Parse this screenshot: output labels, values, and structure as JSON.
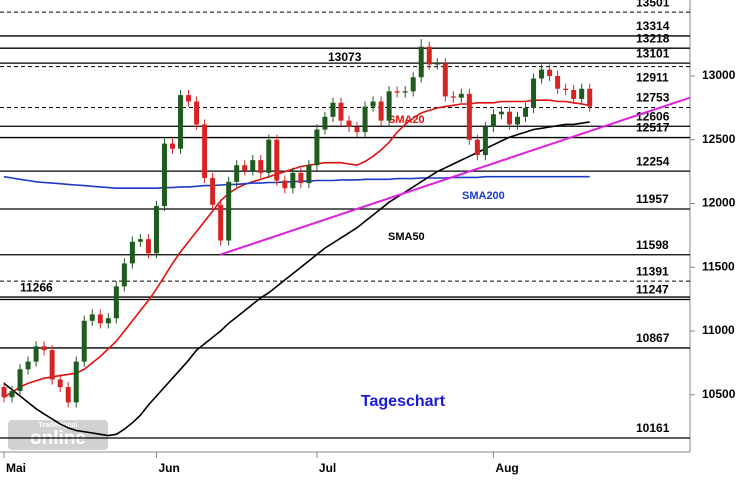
{
  "chart_data": {
    "type": "candlestick",
    "title": "Tageschart",
    "title_color": "#1a1adc",
    "watermark": {
      "brand": "Tradesignal",
      "name": "online"
    },
    "categories": [
      "Mai",
      null,
      null,
      null,
      null,
      null,
      null,
      null,
      null,
      null,
      null,
      null,
      null,
      null,
      null,
      null,
      null,
      null,
      null,
      "Jun",
      null,
      null,
      null,
      null,
      null,
      null,
      null,
      null,
      null,
      null,
      null,
      null,
      null,
      null,
      null,
      null,
      null,
      null,
      null,
      "Jul",
      null,
      null,
      null,
      null,
      null,
      null,
      null,
      null,
      null,
      null,
      null,
      null,
      null,
      null,
      null,
      null,
      null,
      null,
      null,
      null,
      null,
      "Aug",
      null,
      null,
      null,
      null,
      null,
      null,
      null,
      null,
      null,
      null,
      null,
      null
    ],
    "open": [
      10560,
      10480,
      10530,
      10700,
      10760,
      10880,
      10850,
      10620,
      10560,
      10440,
      10760,
      11080,
      11130,
      11060,
      11100,
      11350,
      11530,
      11700,
      11720,
      11610,
      11980,
      12470,
      12430,
      12850,
      12800,
      12620,
      12200,
      11990,
      11710,
      12170,
      12300,
      12260,
      12340,
      12240,
      12500,
      12180,
      12120,
      12240,
      12160,
      12300,
      12580,
      12680,
      12790,
      12650,
      12600,
      12560,
      12760,
      12800,
      12650,
      12880,
      12870,
      12880,
      12990,
      13230,
      13090,
      13100,
      12840,
      12830,
      12860,
      12500,
      12380,
      12600,
      12700,
      12720,
      12620,
      12680,
      12750,
      12980,
      13050,
      13000,
      12900,
      12890,
      12820,
      12900
    ],
    "high": [
      10600,
      10570,
      10740,
      10800,
      10920,
      10920,
      10890,
      10660,
      10600,
      10800,
      11120,
      11170,
      11170,
      11140,
      11390,
      11570,
      11740,
      11760,
      11760,
      12020,
      12510,
      12510,
      12890,
      12890,
      12840,
      12660,
      12240,
      12030,
      12210,
      12340,
      12340,
      12380,
      12380,
      12540,
      12540,
      12220,
      12280,
      12280,
      12340,
      12620,
      12720,
      12830,
      12830,
      12690,
      12640,
      12800,
      12840,
      12840,
      12920,
      12920,
      12920,
      13030,
      13290,
      13270,
      13140,
      13140,
      12880,
      12900,
      12900,
      12540,
      12640,
      12740,
      12760,
      12760,
      12720,
      12790,
      13020,
      13090,
      13090,
      13040,
      12940,
      12930,
      12940,
      12940
    ],
    "low": [
      10440,
      10440,
      10490,
      10660,
      10720,
      10810,
      10580,
      10520,
      10400,
      10400,
      10720,
      11040,
      11020,
      11020,
      11060,
      11310,
      11490,
      11660,
      11570,
      11570,
      11940,
      12390,
      12390,
      12760,
      12580,
      12160,
      11950,
      11670,
      11670,
      12130,
      12220,
      12220,
      12200,
      12200,
      12140,
      12080,
      12080,
      12120,
      12120,
      12260,
      12540,
      12640,
      12610,
      12560,
      12520,
      12520,
      12720,
      12610,
      12610,
      12830,
      12830,
      12840,
      12950,
      13050,
      13050,
      12800,
      12790,
      12790,
      12460,
      12340,
      12340,
      12560,
      12660,
      12580,
      12580,
      12640,
      12710,
      12940,
      12960,
      12860,
      12850,
      12780,
      12780,
      12720
    ],
    "close": [
      10480,
      10530,
      10700,
      10760,
      10880,
      10850,
      10620,
      10560,
      10440,
      10760,
      11080,
      11130,
      11060,
      11100,
      11350,
      11530,
      11700,
      11720,
      11610,
      11980,
      12470,
      12430,
      12850,
      12800,
      12620,
      12200,
      11990,
      11710,
      12170,
      12300,
      12260,
      12340,
      12240,
      12500,
      12180,
      12120,
      12240,
      12160,
      12300,
      12580,
      12680,
      12790,
      12650,
      12600,
      12560,
      12760,
      12800,
      12650,
      12880,
      12870,
      12880,
      12990,
      13230,
      13090,
      13100,
      12840,
      12830,
      12860,
      12500,
      12380,
      12600,
      12700,
      12720,
      12620,
      12680,
      12750,
      12980,
      13050,
      13000,
      12900,
      12890,
      12820,
      12900,
      12760
    ],
    "up_color": "#1f5a1f",
    "down_color": "#d42424",
    "series": [
      {
        "name": "SMA20",
        "color": "#e01010",
        "values": [
          10480,
          10520,
          10560,
          10590,
          10610,
          10630,
          10640,
          10650,
          10660,
          10670,
          10700,
          10750,
          10800,
          10860,
          10920,
          11000,
          11080,
          11160,
          11240,
          11330,
          11430,
          11530,
          11620,
          11700,
          11780,
          11860,
          11940,
          12020,
          12080,
          12120,
          12150,
          12170,
          12190,
          12210,
          12230,
          12250,
          12270,
          12290,
          12300,
          12310,
          12320,
          12320,
          12320,
          12310,
          12300,
          12330,
          12370,
          12420,
          12480,
          12560,
          12620,
          12670,
          12710,
          12730,
          12750,
          12760,
          12770,
          12780,
          12780,
          12790,
          12790,
          12790,
          12800,
          12800,
          12800,
          12800,
          12810,
          12810,
          12810,
          12800,
          12800,
          12790,
          12780,
          12770
        ]
      },
      {
        "name": "SMA200",
        "color": "#1a3cc8",
        "values": [
          12210,
          12200,
          12190,
          12180,
          12170,
          12165,
          12160,
          12155,
          12150,
          12145,
          12140,
          12135,
          12130,
          12125,
          12120,
          12120,
          12120,
          12120,
          12120,
          12120,
          12125,
          12125,
          12130,
          12130,
          12135,
          12140,
          12140,
          12145,
          12150,
          12150,
          12155,
          12160,
          12160,
          12165,
          12165,
          12170,
          12170,
          12175,
          12175,
          12180,
          12180,
          12180,
          12185,
          12185,
          12185,
          12190,
          12190,
          12190,
          12190,
          12195,
          12195,
          12195,
          12200,
          12200,
          12200,
          12200,
          12205,
          12205,
          12205,
          12205,
          12210,
          12210,
          12210,
          12210,
          12210,
          12210,
          12210,
          12210,
          12210,
          12210,
          12210,
          12210,
          12210,
          12210
        ]
      },
      {
        "name": "SMA50",
        "color": "#000000",
        "values": [
          10590,
          10540,
          10490,
          10440,
          10390,
          10350,
          10310,
          10270,
          10240,
          10220,
          10210,
          10200,
          10190,
          10180,
          10190,
          10230,
          10280,
          10340,
          10420,
          10490,
          10560,
          10630,
          10700,
          10770,
          10850,
          10900,
          10950,
          11000,
          11060,
          11110,
          11160,
          11210,
          11260,
          11300,
          11350,
          11400,
          11450,
          11500,
          11550,
          11600,
          11650,
          11690,
          11730,
          11770,
          11810,
          11860,
          11910,
          11960,
          12010,
          12050,
          12090,
          12130,
          12170,
          12210,
          12250,
          12280,
          12310,
          12340,
          12370,
          12400,
          12430,
          12460,
          12490,
          12520,
          12540,
          12560,
          12580,
          12590,
          12600,
          12610,
          12620,
          12620,
          12630,
          12640
        ]
      }
    ],
    "trendline": {
      "color": "#e020e0",
      "x": [
        27,
        85.5
      ],
      "y": [
        11600,
        12830
      ]
    },
    "levels": [
      {
        "value": 13501,
        "style": "dashed",
        "side": "right"
      },
      {
        "value": 13314,
        "style": "solid",
        "side": "right"
      },
      {
        "value": 13218,
        "style": "solid",
        "side": "right"
      },
      {
        "value": 13101,
        "style": "solid",
        "side": "right"
      },
      {
        "value": 13073,
        "style": "dashed",
        "side": "left"
      },
      {
        "value": 12911,
        "style": "none",
        "side": "right"
      },
      {
        "value": 12753,
        "style": "dashed",
        "side": "right"
      },
      {
        "value": 12606,
        "style": "solid",
        "side": "right"
      },
      {
        "value": 12517,
        "style": "solid",
        "side": "right"
      },
      {
        "value": 12254,
        "style": "solid",
        "side": "right"
      },
      {
        "value": 11957,
        "style": "solid",
        "side": "right"
      },
      {
        "value": 11598,
        "style": "solid",
        "side": "right"
      },
      {
        "value": 11391,
        "style": "dashed",
        "side": "right"
      },
      {
        "value": 11266,
        "style": "solid",
        "side": "left"
      },
      {
        "value": 11247,
        "style": "solid",
        "side": "right"
      },
      {
        "value": 10867,
        "style": "solid",
        "side": "right"
      },
      {
        "value": 10161,
        "style": "solid",
        "side": "right"
      }
    ],
    "xlim": [
      -0.5,
      85.5
    ],
    "ylim": [
      10051,
      13596
    ],
    "yticks": [
      10500,
      11000,
      11500,
      12000,
      12500,
      13000
    ]
  }
}
